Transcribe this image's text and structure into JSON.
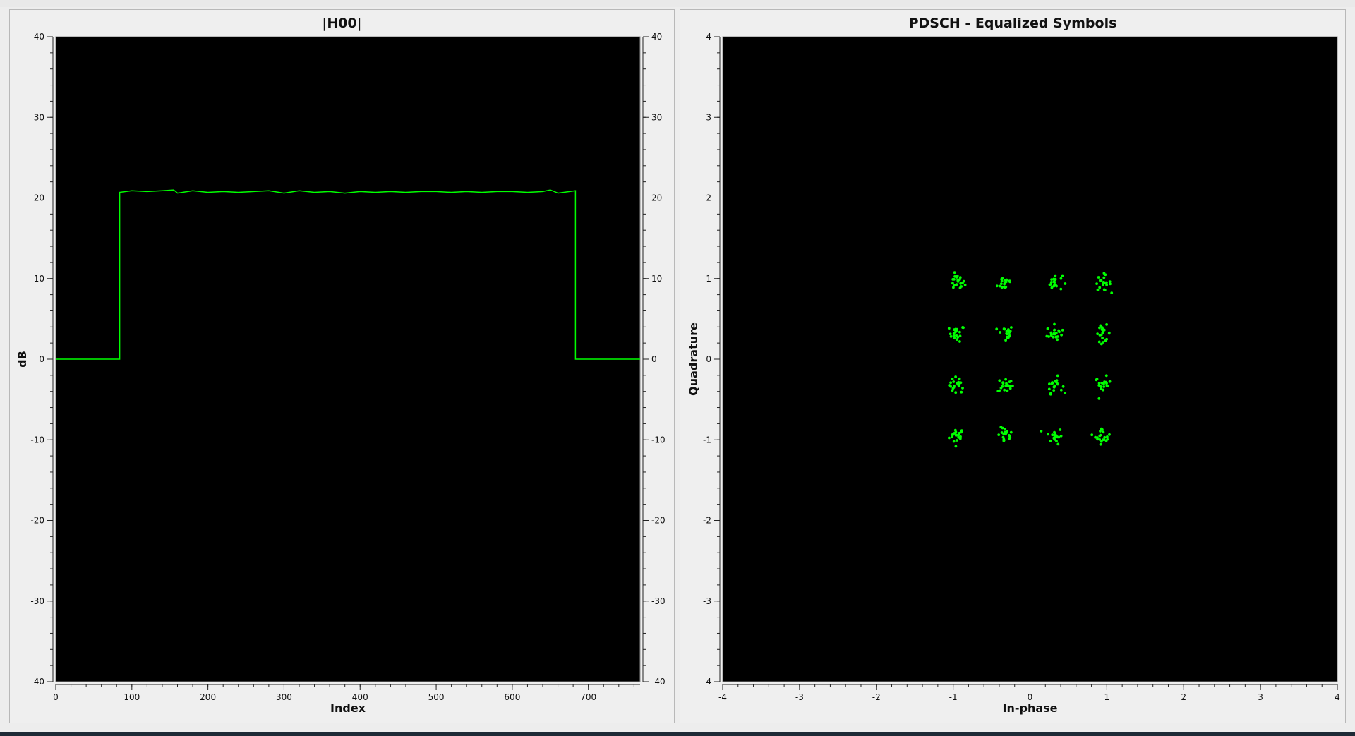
{
  "colors": {
    "trace": "#00ff00",
    "plot_background": "#000000",
    "window_background": "#efefef"
  },
  "chart_data": [
    {
      "type": "line",
      "title": "|H00|",
      "xlabel": "Index",
      "ylabel": "dB",
      "xlim": [
        0,
        768
      ],
      "ylim": [
        -40,
        40
      ],
      "x_ticks": [
        0,
        100,
        200,
        300,
        400,
        500,
        600,
        700
      ],
      "y_ticks": [
        40,
        30,
        20,
        10,
        0,
        -10,
        -20,
        -30,
        -40
      ],
      "x_tick_labels": [
        "0",
        "100",
        "200",
        "300",
        "400",
        "500",
        "600",
        "700"
      ],
      "y_tick_labels": [
        "40",
        "30",
        "20",
        "10",
        "0",
        "-10",
        "-20",
        "-30",
        "-40"
      ],
      "right_axis_mirrored": true,
      "grid": false,
      "series": [
        {
          "color": "#00ff00",
          "x": [
            0,
            84,
            84,
            100,
            120,
            140,
            155,
            160,
            180,
            200,
            220,
            240,
            260,
            280,
            300,
            320,
            340,
            360,
            380,
            400,
            420,
            440,
            460,
            480,
            500,
            520,
            540,
            560,
            580,
            600,
            620,
            640,
            650,
            660,
            683,
            683,
            768
          ],
          "y": [
            0,
            0,
            20.7,
            20.9,
            20.8,
            20.9,
            21.0,
            20.6,
            20.9,
            20.7,
            20.8,
            20.7,
            20.8,
            20.9,
            20.6,
            20.9,
            20.7,
            20.8,
            20.6,
            20.8,
            20.7,
            20.8,
            20.7,
            20.8,
            20.8,
            20.7,
            20.8,
            20.7,
            20.8,
            20.8,
            20.7,
            20.8,
            21.0,
            20.6,
            20.9,
            0,
            0
          ]
        }
      ]
    },
    {
      "type": "scatter",
      "title": "PDSCH - Equalized Symbols",
      "xlabel": "In-phase",
      "ylabel": "Quadrature",
      "xlim": [
        -4,
        4
      ],
      "ylim": [
        -4,
        4
      ],
      "x_ticks": [
        -4,
        -3,
        -2,
        -1,
        0,
        1,
        2,
        3,
        4
      ],
      "y_ticks": [
        4,
        3,
        2,
        1,
        0,
        -1,
        -2,
        -3,
        -4
      ],
      "x_tick_labels": [
        "-4",
        "-3",
        "-2",
        "-1",
        "0",
        "1",
        "2",
        "3",
        "4"
      ],
      "y_tick_labels": [
        "4",
        "3",
        "2",
        "1",
        "0",
        "-1",
        "-2",
        "-3",
        "-4"
      ],
      "grid": false,
      "modulation_levels": [
        -0.95,
        -0.32,
        0.32,
        0.95
      ],
      "points_per_cluster": 20,
      "spread": 0.05,
      "series": [
        {
          "color": "#00ff00"
        }
      ]
    }
  ]
}
